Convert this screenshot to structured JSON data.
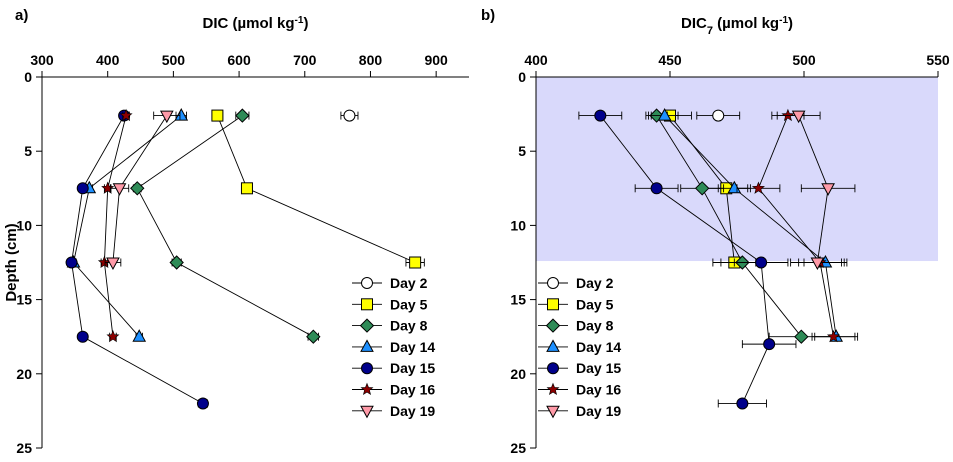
{
  "chart_data": [
    {
      "panel": "a)",
      "type": "scatter",
      "xlabel": "DIC (µmol kg",
      "xlabel_sup": "-1",
      "xlabel_end": ")",
      "ylabel": "Depth (cm)",
      "xlim": [
        300,
        950
      ],
      "xticks": [
        300,
        400,
        500,
        600,
        700,
        800,
        900
      ],
      "ylim": [
        0,
        25
      ],
      "yticks": [
        0,
        5,
        10,
        15,
        20,
        25
      ],
      "y_inverted": true,
      "x_axis_position": "top",
      "grid": false,
      "shaded_region": null,
      "legend_position": "bottom-right",
      "error_bars": true,
      "series": [
        {
          "name": "Day 2",
          "marker": "circle",
          "color": "#ffffff",
          "points": [
            {
              "x": 768,
              "y": 2.6,
              "xerr": 13
            }
          ]
        },
        {
          "name": "Day 5",
          "marker": "square",
          "color": "#ffff00",
          "points": [
            {
              "x": 567,
              "y": 2.6,
              "xerr": 8
            },
            {
              "x": 612,
              "y": 7.5,
              "xerr": 8
            },
            {
              "x": 868,
              "y": 12.5,
              "xerr": 14
            }
          ]
        },
        {
          "name": "Day 8",
          "marker": "diamond",
          "color": "#2e8b57",
          "points": [
            {
              "x": 605,
              "y": 2.6,
              "xerr": 10
            },
            {
              "x": 445,
              "y": 7.5,
              "xerr": 6
            },
            {
              "x": 505,
              "y": 12.5,
              "xerr": 7
            },
            {
              "x": 713,
              "y": 17.5,
              "xerr": 8
            }
          ]
        },
        {
          "name": "Day 14",
          "marker": "triangle-up",
          "color": "#1e90ff",
          "points": [
            {
              "x": 512,
              "y": 2.6,
              "xerr": 8
            },
            {
              "x": 372,
              "y": 7.5,
              "xerr": 5
            },
            {
              "x": 348,
              "y": 12.5,
              "xerr": 4
            },
            {
              "x": 448,
              "y": 17.5,
              "xerr": 5
            }
          ]
        },
        {
          "name": "Day 15",
          "marker": "circle",
          "color": "#00008b",
          "points": [
            {
              "x": 425,
              "y": 2.6,
              "xerr": 6
            },
            {
              "x": 362,
              "y": 7.5,
              "xerr": 5
            },
            {
              "x": 345,
              "y": 12.5,
              "xerr": 4
            },
            {
              "x": 362,
              "y": 17.5,
              "xerr": 4
            },
            {
              "x": 545,
              "y": 22,
              "xerr": 7
            }
          ]
        },
        {
          "name": "Day 16",
          "marker": "star",
          "color": "#8b0000",
          "points": [
            {
              "x": 428,
              "y": 2.6,
              "xerr": 5
            },
            {
              "x": 400,
              "y": 7.5,
              "xerr": 5
            },
            {
              "x": 395,
              "y": 12.5,
              "xerr": 5
            },
            {
              "x": 408,
              "y": 17.5,
              "xerr": 5
            }
          ]
        },
        {
          "name": "Day 19",
          "marker": "triangle-down",
          "color": "#ff9aa8",
          "points": [
            {
              "x": 490,
              "y": 2.6,
              "xerr": 20
            },
            {
              "x": 418,
              "y": 7.5,
              "xerr": 14
            },
            {
              "x": 408,
              "y": 12.5,
              "xerr": 12
            }
          ]
        }
      ]
    },
    {
      "panel": "b)",
      "type": "scatter",
      "xlabel": "DIC",
      "xlabel_sub": "7",
      "xlabel_rest": " (µmol kg",
      "xlabel_sup": "-1",
      "xlabel_end": ")",
      "ylabel": "",
      "xlim": [
        400,
        550
      ],
      "xticks": [
        400,
        450,
        500,
        550
      ],
      "ylim": [
        0,
        25
      ],
      "yticks": [
        0,
        5,
        10,
        15,
        20,
        25
      ],
      "y_inverted": true,
      "x_axis_position": "top",
      "grid": false,
      "shaded_region": {
        "y_from": 0,
        "y_to": 12.4,
        "color": "#d9d9fb"
      },
      "legend_position": "bottom-left",
      "error_bars": true,
      "series": [
        {
          "name": "Day 2",
          "marker": "circle",
          "color": "#ffffff",
          "points": [
            {
              "x": 468,
              "y": 2.6,
              "xerr": 8
            }
          ]
        },
        {
          "name": "Day 5",
          "marker": "square",
          "color": "#ffff00",
          "points": [
            {
              "x": 450,
              "y": 2.6,
              "xerr": 8
            },
            {
              "x": 471,
              "y": 7.5,
              "xerr": 8
            },
            {
              "x": 474,
              "y": 12.5,
              "xerr": 8
            }
          ]
        },
        {
          "name": "Day 8",
          "marker": "diamond",
          "color": "#2e8b57",
          "points": [
            {
              "x": 445,
              "y": 2.6,
              "xerr": 4
            },
            {
              "x": 462,
              "y": 7.5,
              "xerr": 8
            },
            {
              "x": 477,
              "y": 12.5,
              "xerr": 8
            },
            {
              "x": 499,
              "y": 17.5,
              "xerr": 12
            }
          ]
        },
        {
          "name": "Day 14",
          "marker": "triangle-up",
          "color": "#1e90ff",
          "points": [
            {
              "x": 448,
              "y": 2.6,
              "xerr": 5
            },
            {
              "x": 474,
              "y": 7.5,
              "xerr": 6
            },
            {
              "x": 508,
              "y": 12.5,
              "xerr": 8
            },
            {
              "x": 512,
              "y": 17.5,
              "xerr": 8
            }
          ]
        },
        {
          "name": "Day 15",
          "marker": "circle",
          "color": "#00008b",
          "points": [
            {
              "x": 424,
              "y": 2.6,
              "xerr": 8
            },
            {
              "x": 445,
              "y": 7.5,
              "xerr": 8
            },
            {
              "x": 484,
              "y": 12.5,
              "xerr": 10
            },
            {
              "x": 487,
              "y": 18,
              "xerr": 10
            },
            {
              "x": 477,
              "y": 22,
              "xerr": 9
            }
          ]
        },
        {
          "name": "Day 16",
          "marker": "star",
          "color": "#8b0000",
          "points": [
            {
              "x": 494,
              "y": 2.6,
              "xerr": 6
            },
            {
              "x": 483,
              "y": 7.5,
              "xerr": 8
            },
            {
              "x": 506,
              "y": 12.5,
              "xerr": 8
            },
            {
              "x": 511,
              "y": 17.5,
              "xerr": 8
            }
          ]
        },
        {
          "name": "Day 19",
          "marker": "triangle-down",
          "color": "#ff9aa8",
          "points": [
            {
              "x": 498,
              "y": 2.6,
              "xerr": 8
            },
            {
              "x": 509,
              "y": 7.5,
              "xerr": 10
            },
            {
              "x": 505,
              "y": 12.5,
              "xerr": 10
            }
          ]
        }
      ]
    }
  ]
}
